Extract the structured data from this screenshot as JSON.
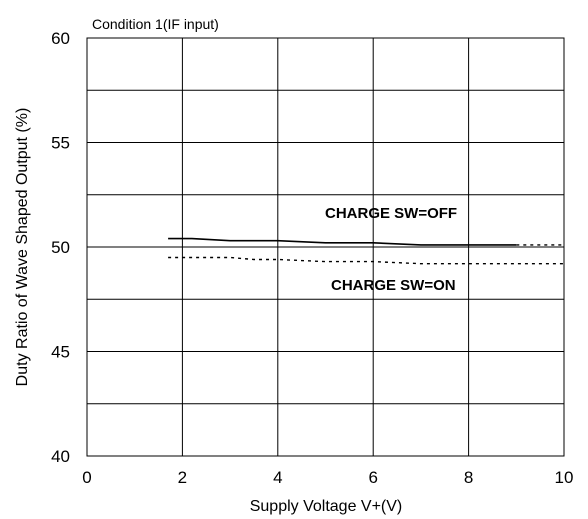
{
  "chart_data": {
    "type": "line",
    "note": "Condition 1(IF input)",
    "xlabel": "Supply Voltage V+(V)",
    "ylabel": "Duty Ratio of Wave Shaped Output (%)",
    "xlim": [
      0,
      10
    ],
    "ylim": [
      40,
      60
    ],
    "xticks": [
      0,
      2,
      4,
      6,
      8,
      10
    ],
    "yticks": [
      40,
      45,
      50,
      55,
      60
    ],
    "grid": true,
    "series": [
      {
        "name": "CHARGE SW=OFF",
        "style": "solid",
        "color": "#000000",
        "x": [
          1.7,
          2.2,
          3.0,
          4.0,
          5.0,
          6.0,
          7.0,
          8.0,
          9.0
        ],
        "y": [
          50.4,
          50.4,
          50.3,
          50.3,
          50.2,
          50.2,
          50.1,
          50.1,
          50.1
        ]
      },
      {
        "name": "CHARGE SW=OFF",
        "style": "dotted",
        "color": "#000000",
        "x": [
          9.0,
          10.0
        ],
        "y": [
          50.1,
          50.1
        ]
      },
      {
        "name": "CHARGE SW=ON",
        "style": "dotted",
        "color": "#000000",
        "x": [
          1.7,
          3.0,
          3.5,
          4.0,
          5.0,
          6.0,
          7.0,
          8.0,
          9.0,
          10.0
        ],
        "y": [
          49.5,
          49.5,
          49.4,
          49.4,
          49.3,
          49.3,
          49.2,
          49.2,
          49.2,
          49.2
        ]
      }
    ]
  }
}
